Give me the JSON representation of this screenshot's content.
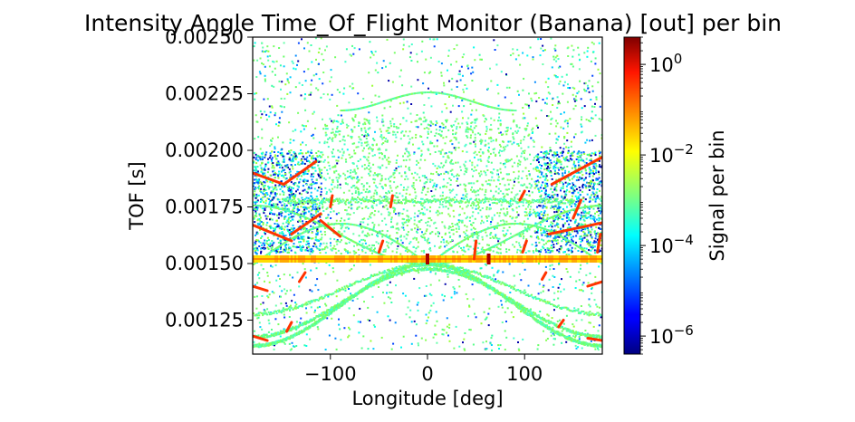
{
  "chart_data": {
    "type": "heatmap",
    "title": "Intensity Angle Time_Of_Flight Monitor (Banana) [out] per bin",
    "xlabel": "Longitude [deg]",
    "ylabel": "TOF [s]",
    "xlim": [
      -180,
      180
    ],
    "ylim": [
      0.0011,
      0.0025
    ],
    "x_ticks": [
      -100,
      0,
      100
    ],
    "x_tick_labels": [
      "−100",
      "0",
      "100"
    ],
    "y_ticks": [
      0.00125,
      0.0015,
      0.00175,
      0.002,
      0.00225,
      0.0025
    ],
    "y_tick_labels": [
      "0.00125",
      "0.00150",
      "0.00175",
      "0.00200",
      "0.00225",
      "0.00250"
    ],
    "colorbar": {
      "label": "Signal per bin",
      "scale": "log",
      "colormap": "jet",
      "range": [
        4e-07,
        4
      ],
      "ticks": [
        1e-06,
        0.0001,
        0.01,
        1
      ],
      "tick_mantissa": [
        "10",
        "10",
        "10",
        "10"
      ],
      "tick_exponents": [
        "−6",
        "−4",
        "−2",
        "0"
      ]
    },
    "features": {
      "elastic_line_tof": 0.00152,
      "bright_spots": [
        {
          "x": 0,
          "y": 0.00152
        },
        {
          "x": 63,
          "y": 0.00152
        }
      ]
    }
  }
}
